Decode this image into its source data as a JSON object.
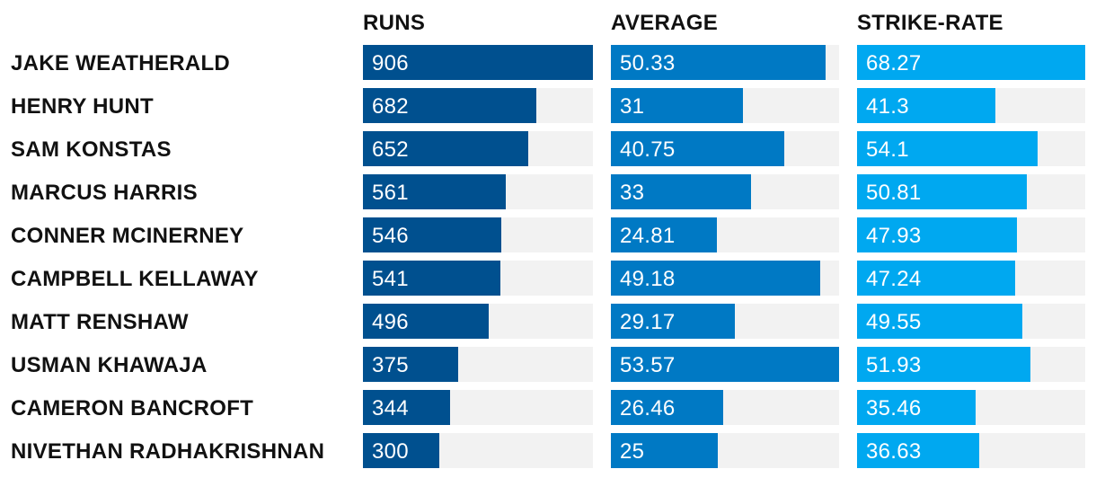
{
  "chart_data": {
    "type": "bar",
    "categories": [
      "JAKE WEATHERALD",
      "HENRY HUNT",
      "SAM KONSTAS",
      "MARCUS HARRIS",
      "CONNER MCINERNEY",
      "CAMPBELL KELLAWAY",
      "MATT RENSHAW",
      "USMAN KHAWAJA",
      "CAMERON BANCROFT",
      "NIVETHAN RADHAKRISHNAN"
    ],
    "series": [
      {
        "name": "RUNS",
        "color": "#00508f",
        "values": [
          906,
          682,
          652,
          561,
          546,
          541,
          496,
          375,
          344,
          300
        ],
        "labels": [
          "906",
          "682",
          "652",
          "561",
          "546",
          "541",
          "496",
          "375",
          "344",
          "300"
        ],
        "max": 906
      },
      {
        "name": "AVERAGE",
        "color": "#0079c4",
        "values": [
          50.33,
          31,
          40.75,
          33,
          24.81,
          49.18,
          29.17,
          53.57,
          26.46,
          25
        ],
        "labels": [
          "50.33",
          "31",
          "40.75",
          "33",
          "24.81",
          "49.18",
          "29.17",
          "53.57",
          "26.46",
          "25"
        ],
        "max": 53.57
      },
      {
        "name": "STRIKE-RATE",
        "color": "#00a8f0",
        "values": [
          68.27,
          41.3,
          54.1,
          50.81,
          47.93,
          47.24,
          49.55,
          51.93,
          35.46,
          36.63
        ],
        "labels": [
          "68.27",
          "41.3",
          "54.1",
          "50.81",
          "47.93",
          "47.24",
          "49.55",
          "51.93",
          "35.46",
          "36.63"
        ],
        "max": 68.27
      }
    ],
    "track_color": "#f2f2f2",
    "grid": false,
    "legend": "none"
  }
}
